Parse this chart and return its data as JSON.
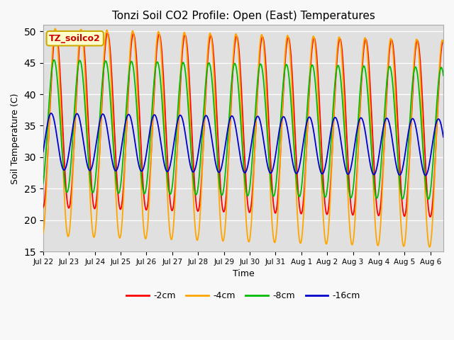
{
  "title": "Tonzi Soil CO2 Profile: Open (East) Temperatures",
  "xlabel": "Time",
  "ylabel": "Soil Temperature (C)",
  "ylim": [
    15,
    51
  ],
  "yticks": [
    15,
    20,
    25,
    30,
    35,
    40,
    45,
    50
  ],
  "legend_label": "TZ_soilco2",
  "n_days": 15.5,
  "series": [
    {
      "label": "-2cm",
      "color": "#ff0000",
      "amp": 14.0,
      "mean": 36.0,
      "phase": 0.05,
      "trend": -0.1
    },
    {
      "label": "-4cm",
      "color": "#ffa500",
      "amp": 16.5,
      "mean": 34.0,
      "phase": 0.22,
      "trend": -0.12
    },
    {
      "label": "-8cm",
      "color": "#00bb00",
      "amp": 10.5,
      "mean": 35.0,
      "phase": 0.5,
      "trend": -0.08
    },
    {
      "label": "-16cm",
      "color": "#0000cc",
      "amp": 4.5,
      "mean": 32.5,
      "phase": 1.2,
      "trend": -0.06
    }
  ],
  "day_labels": [
    "Jul 22",
    "Jul 23",
    "Jul 24",
    "Jul 25",
    "Jul 26",
    "Jul 27",
    "Jul 28",
    "Jul 29",
    "Jul 30",
    "Jul 31",
    "Aug 1",
    "Aug 2",
    "Aug 3",
    "Aug 4",
    "Aug 5",
    "Aug 6"
  ],
  "plot_bg_color": "#e0e0e0",
  "fig_bg_color": "#f8f8f8",
  "grid_color": "#ffffff",
  "annotation_facecolor": "#ffffcc",
  "annotation_edgecolor": "#ccaa00",
  "annotation_textcolor": "#cc0000"
}
